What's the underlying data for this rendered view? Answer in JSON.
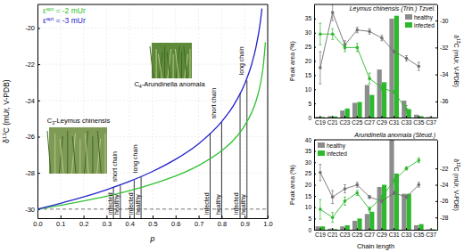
{
  "chart_data": [
    {
      "type": "line",
      "xlabel": "p",
      "ylabel": "δ13C (mUr, V-PDB)",
      "x": [
        0,
        0.1,
        0.2,
        0.3,
        0.4,
        0.5,
        0.6,
        0.7,
        0.8,
        0.85,
        0.9,
        0.93,
        0.95,
        0.97,
        0.975,
        0.98,
        0.99
      ],
      "xlim": [
        0,
        1
      ],
      "xticks": [
        {
          "value": 0,
          "label": "0.0"
        },
        0.1,
        0.2,
        0.3,
        0.4,
        0.5,
        0.6,
        0.7,
        0.8,
        0.9,
        {
          "value": 1,
          "label": "1.0"
        }
      ],
      "ylim": [
        -30.5,
        -18.7
      ],
      "yticks": [
        -30,
        -28,
        -26,
        -24,
        -22,
        -20
      ],
      "grid": true,
      "series": [
        {
          "name": "εapt = -2 mUr",
          "color": "#2fc12f",
          "values": [
            -30,
            -29.79,
            -29.55,
            -29.29,
            -28.98,
            -28.61,
            -28.17,
            -27.59,
            -26.78,
            -26.21,
            -25.39,
            -24.68,
            -24.01,
            -22.99,
            -22.62,
            -22.18,
            -20.79
          ]
        },
        {
          "name": "εapt = -3 mUr",
          "color": "#2222cc",
          "values": [
            -30,
            -29.68,
            -29.33,
            -28.93,
            -28.47,
            -27.92,
            -27.25,
            -26.39,
            -25.17,
            -24.31,
            -23.09,
            -22.02,
            -21.01,
            -19.48,
            -18.93,
            null,
            null
          ]
        }
      ],
      "hline": -30,
      "vlines": [
        {
          "x": 0.33,
          "y": -28.8
        },
        {
          "x": 0.36,
          "y": -28.7
        },
        {
          "x": 0.42,
          "y": -28.4
        },
        {
          "x": 0.45,
          "y": -28.2
        },
        {
          "x": 0.75,
          "y": -25.8
        },
        {
          "x": 0.8,
          "y": -25.2
        },
        {
          "x": 0.88,
          "y": -23.6
        },
        {
          "x": 0.91,
          "y": -22.9
        }
      ],
      "annotations": [
        {
          "text": "infected",
          "x": 0.324,
          "y": -30.3
        },
        {
          "text": "short chain",
          "x": 0.345,
          "y": -28.5
        },
        {
          "text": "healthy",
          "x": 0.354,
          "y": -30.3
        },
        {
          "text": "infected",
          "x": 0.414,
          "y": -30.3
        },
        {
          "text": "long chain",
          "x": 0.435,
          "y": -28.0
        },
        {
          "text": "healthy",
          "x": 0.444,
          "y": -30.3
        },
        {
          "text": "infected",
          "x": 0.744,
          "y": -30.3
        },
        {
          "text": "short chain",
          "x": 0.775,
          "y": -25.0
        },
        {
          "text": "healthy",
          "x": 0.794,
          "y": -30.3
        },
        {
          "text": "infected",
          "x": 0.874,
          "y": -30.3
        },
        {
          "text": "long chain",
          "x": 0.895,
          "y": -22.6
        },
        {
          "text": "healthy",
          "x": 0.904,
          "y": -30.3
        }
      ],
      "photo_labels": [
        "C3-Leymus chinensis",
        "C4-Arundinella anomala"
      ]
    },
    {
      "type": "bar",
      "title": "Leymus chinensis (Trin.) Tzvel.",
      "ylabel": "Peak area (%)",
      "y2label": "δ13C (mUr, V-PDB)",
      "categories": [
        "C19",
        "C21",
        "C23",
        "C25",
        "C27",
        "C29",
        "C31",
        "C33",
        "C35",
        "C37"
      ],
      "ylim": [
        0,
        40
      ],
      "yticks": [
        0,
        5,
        10,
        15,
        20,
        25,
        30,
        35
      ],
      "y2lim": [
        -37.2,
        -28.8
      ],
      "y2ticks": [
        -30,
        -32,
        -34,
        -36
      ],
      "legend": "upper right",
      "series": [
        {
          "name": "healthy",
          "color": "#8c8c8c",
          "values": [
            0.3,
            0.5,
            2.5,
            5.2,
            11.5,
            17,
            35,
            6,
            1,
            0.2
          ]
        },
        {
          "name": "infected",
          "color": "#2db82d",
          "values": [
            0.2,
            0.4,
            3.2,
            5.5,
            8,
            12.5,
            36,
            3,
            0.5,
            0.1
          ]
        },
        {
          "type": "line",
          "axis": "y2",
          "color": "#6e6e6e",
          "marker": "circle",
          "values": [
            -33.5,
            -29.4,
            -31.8,
            -30.7,
            -30.8,
            -31.3,
            -32.3,
            -32.8,
            -33.4,
            null
          ],
          "errors": [
            1.2,
            0.6,
            0.3,
            0.2,
            0.2,
            0.2,
            0.1,
            0.2,
            0.3,
            null
          ]
        },
        {
          "type": "line",
          "axis": "y2",
          "color": "#2db82d",
          "marker": "circle",
          "values": [
            -31.0,
            -31.0,
            -32.0,
            -32.0,
            -34.3,
            -35.0,
            -35.3,
            -36.6,
            null,
            null
          ],
          "errors": [
            0.8,
            0.4,
            0.3,
            0.3,
            0.4,
            0.2,
            0.1,
            0.3,
            null,
            null
          ]
        }
      ]
    },
    {
      "type": "bar",
      "title": "Arundinella anomala (Steud.)",
      "xlabel": "Chain length",
      "ylabel": "Peak area (%)",
      "y2label": "δ13C (mUr, V-PDB)",
      "categories": [
        "C19",
        "C21",
        "C23",
        "C25",
        "C27",
        "C29",
        "C31",
        "C33",
        "C35",
        "C37"
      ],
      "ylim": [
        0,
        40
      ],
      "yticks": [
        0,
        5,
        10,
        15,
        20,
        25,
        30,
        35,
        40
      ],
      "y2lim": [
        -29.5,
        -18.5
      ],
      "y2ticks": [
        -22,
        -24,
        -26,
        -28
      ],
      "legend": "upper left",
      "series": [
        {
          "name": "healthy",
          "color": "#8c8c8c",
          "values": [
            1.5,
            0.5,
            1.5,
            4,
            7,
            19,
            40,
            16,
            2,
            0.2
          ]
        },
        {
          "name": "infected",
          "color": "#2db82d",
          "values": [
            1.5,
            0.3,
            2,
            5,
            8,
            20,
            25,
            16,
            2.5,
            0.2
          ]
        },
        {
          "type": "line",
          "axis": "y2",
          "color": "#6e6e6e",
          "marker": "circle",
          "values": [
            -22.5,
            -25.5,
            -24.5,
            -24,
            -25.5,
            -26,
            -25,
            -25.5,
            -24,
            null
          ],
          "errors": [
            1,
            0.8,
            0.5,
            0.3,
            0.2,
            0.2,
            0.2,
            0.2,
            0.3,
            null
          ]
        },
        {
          "type": "line",
          "axis": "y2",
          "color": "#2db82d",
          "marker": "circle",
          "values": [
            -27,
            -28,
            -26,
            -25,
            -27,
            -25.5,
            -23.5,
            -22,
            -21,
            null
          ],
          "errors": [
            1.2,
            0.6,
            0.5,
            0.3,
            0.3,
            0.2,
            0.2,
            0.2,
            0.3,
            null
          ]
        }
      ]
    }
  ]
}
